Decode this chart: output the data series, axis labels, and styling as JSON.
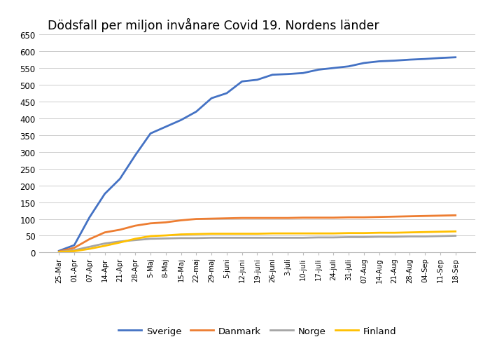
{
  "title": "Dödsfall per miljon invånare Covid 19. Nordens länder",
  "xlabels": [
    "25-Mar",
    "01-Apr",
    "07-Apr",
    "14-Apr",
    "21-Apr",
    "28-Apr",
    "5-Maj",
    "8-Maj",
    "15-Maj",
    "22-maj",
    "29-maj",
    "5-juni",
    "12-juni",
    "19-juni",
    "26-juni",
    "3-juli",
    "10-juli",
    "17-juli",
    "24-juli",
    "31-juli",
    "07-Aug",
    "14-Aug",
    "21-Aug",
    "28-Aug",
    "04-Sep",
    "11-Sep",
    "18-Sep"
  ],
  "sverige": [
    5,
    22,
    105,
    175,
    220,
    290,
    355,
    375,
    395,
    420,
    460,
    475,
    510,
    515,
    530,
    532,
    535,
    545,
    550,
    555,
    565,
    570,
    572,
    575,
    577,
    580,
    582
  ],
  "danmark": [
    3,
    14,
    40,
    60,
    68,
    80,
    87,
    90,
    96,
    100,
    101,
    102,
    103,
    103,
    103,
    103,
    104,
    104,
    104,
    105,
    105,
    106,
    107,
    108,
    109,
    110,
    111
  ],
  "norge": [
    2,
    7,
    17,
    27,
    33,
    37,
    41,
    42,
    43,
    43,
    44,
    44,
    44,
    44,
    44,
    44,
    44,
    45,
    45,
    46,
    46,
    47,
    47,
    48,
    48,
    49,
    50
  ],
  "finland": [
    2,
    4,
    11,
    20,
    30,
    41,
    49,
    51,
    54,
    55,
    56,
    56,
    56,
    56,
    57,
    57,
    57,
    57,
    57,
    58,
    58,
    59,
    59,
    60,
    61,
    62,
    63
  ],
  "colors": {
    "sverige": "#4472C4",
    "danmark": "#ED7D31",
    "norge": "#A5A5A5",
    "finland": "#FFC000"
  },
  "ylim": [
    0,
    650
  ],
  "yticks": [
    0,
    50,
    100,
    150,
    200,
    250,
    300,
    350,
    400,
    450,
    500,
    550,
    600,
    650
  ],
  "background_color": "#FFFFFF",
  "grid_color": "#CCCCCC"
}
